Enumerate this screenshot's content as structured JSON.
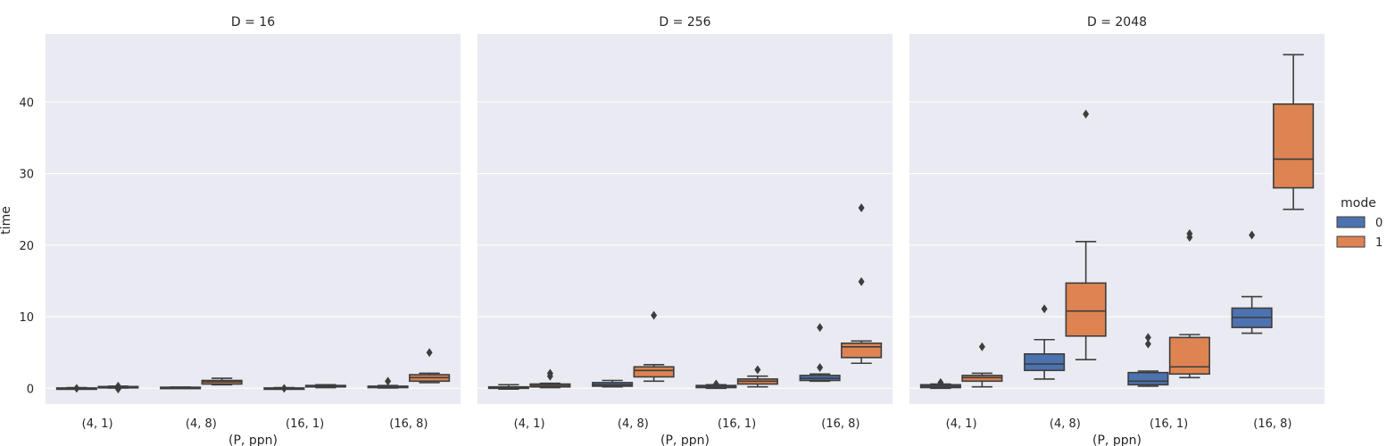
{
  "chart_data": {
    "type": "box",
    "ylabel": "time",
    "xlabel": "(P, ppn)",
    "ylim": [
      -2.2,
      49.5
    ],
    "yticks": [
      0,
      10,
      20,
      30,
      40
    ],
    "categories": [
      "(4, 1)",
      "(4, 8)",
      "(16, 1)",
      "(16, 8)"
    ],
    "legend": {
      "title": "mode",
      "placement": "right",
      "entries": [
        {
          "label": "0",
          "color": "#4c72b0"
        },
        {
          "label": "1",
          "color": "#dd8452"
        }
      ]
    },
    "style": {
      "background": "#eaeaf2",
      "grid": true,
      "grid_color": "#ffffff"
    },
    "panels": [
      {
        "title": "D = 16",
        "boxes": [
          {
            "category": "(4, 1)",
            "mode": "0",
            "whislo": -0.1,
            "q1": -0.05,
            "med": 0.0,
            "q3": 0.05,
            "whishi": 0.1,
            "fliers": [
              0.0
            ]
          },
          {
            "category": "(4, 1)",
            "mode": "1",
            "whislo": 0.05,
            "q1": 0.1,
            "med": 0.15,
            "q3": 0.25,
            "whishi": 0.3,
            "fliers": [
              -0.1,
              0.3
            ]
          },
          {
            "category": "(4, 8)",
            "mode": "0",
            "whislo": 0.05,
            "q1": 0.08,
            "med": 0.1,
            "q3": 0.15,
            "whishi": 0.18,
            "fliers": []
          },
          {
            "category": "(4, 8)",
            "mode": "1",
            "whislo": 0.5,
            "q1": 0.6,
            "med": 0.9,
            "q3": 1.1,
            "whishi": 1.4,
            "fliers": []
          },
          {
            "category": "(16, 1)",
            "mode": "0",
            "whislo": -0.1,
            "q1": -0.05,
            "med": 0.0,
            "q3": 0.05,
            "whishi": 0.1,
            "fliers": [
              0.0
            ]
          },
          {
            "category": "(16, 1)",
            "mode": "1",
            "whislo": 0.1,
            "q1": 0.2,
            "med": 0.3,
            "q3": 0.4,
            "whishi": 0.5,
            "fliers": []
          },
          {
            "category": "(16, 8)",
            "mode": "0",
            "whislo": 0.05,
            "q1": 0.1,
            "med": 0.2,
            "q3": 0.3,
            "whishi": 0.4,
            "fliers": [
              1.0
            ]
          },
          {
            "category": "(16, 8)",
            "mode": "1",
            "whislo": 0.8,
            "q1": 1.0,
            "med": 1.5,
            "q3": 1.9,
            "whishi": 2.1,
            "fliers": [
              5.0
            ]
          }
        ]
      },
      {
        "title": "D = 256",
        "boxes": [
          {
            "category": "(4, 1)",
            "mode": "0",
            "whislo": -0.1,
            "q1": 0.0,
            "med": 0.1,
            "q3": 0.2,
            "whishi": 0.5,
            "fliers": []
          },
          {
            "category": "(4, 1)",
            "mode": "1",
            "whislo": 0.1,
            "q1": 0.2,
            "med": 0.4,
            "q3": 0.6,
            "whishi": 0.7,
            "fliers": [
              1.7,
              2.1
            ]
          },
          {
            "category": "(4, 8)",
            "mode": "0",
            "whislo": 0.2,
            "q1": 0.3,
            "med": 0.5,
            "q3": 0.8,
            "whishi": 1.1,
            "fliers": []
          },
          {
            "category": "(4, 8)",
            "mode": "1",
            "whislo": 1.0,
            "q1": 1.6,
            "med": 2.5,
            "q3": 3.0,
            "whishi": 3.3,
            "fliers": [
              10.2
            ]
          },
          {
            "category": "(16, 1)",
            "mode": "0",
            "whislo": 0.0,
            "q1": 0.1,
            "med": 0.3,
            "q3": 0.4,
            "whishi": 0.5,
            "fliers": [
              0.6
            ]
          },
          {
            "category": "(16, 1)",
            "mode": "1",
            "whislo": 0.2,
            "q1": 0.6,
            "med": 1.0,
            "q3": 1.3,
            "whishi": 1.7,
            "fliers": [
              2.6
            ]
          },
          {
            "category": "(16, 8)",
            "mode": "0",
            "whislo": 1.0,
            "q1": 1.1,
            "med": 1.4,
            "q3": 1.8,
            "whishi": 2.0,
            "fliers": [
              2.9,
              8.5
            ]
          },
          {
            "category": "(16, 8)",
            "mode": "1",
            "whislo": 3.5,
            "q1": 4.3,
            "med": 5.8,
            "q3": 6.3,
            "whishi": 6.6,
            "fliers": [
              14.9,
              25.2
            ]
          }
        ]
      },
      {
        "title": "D = 2048",
        "boxes": [
          {
            "category": "(4, 1)",
            "mode": "0",
            "whislo": 0.0,
            "q1": 0.1,
            "med": 0.3,
            "q3": 0.5,
            "whishi": 0.6,
            "fliers": [
              0.8
            ]
          },
          {
            "category": "(4, 1)",
            "mode": "1",
            "whislo": 0.2,
            "q1": 1.0,
            "med": 1.5,
            "q3": 1.8,
            "whishi": 2.1,
            "fliers": [
              5.8
            ]
          },
          {
            "category": "(4, 8)",
            "mode": "0",
            "whislo": 1.3,
            "q1": 2.5,
            "med": 3.4,
            "q3": 4.8,
            "whishi": 6.8,
            "fliers": [
              11.1
            ]
          },
          {
            "category": "(4, 8)",
            "mode": "1",
            "whislo": 4.0,
            "q1": 7.3,
            "med": 10.8,
            "q3": 14.7,
            "whishi": 20.5,
            "fliers": [
              38.3
            ]
          },
          {
            "category": "(16, 1)",
            "mode": "0",
            "whislo": 0.3,
            "q1": 0.5,
            "med": 1.0,
            "q3": 2.2,
            "whishi": 2.4,
            "fliers": [
              6.2,
              7.1
            ]
          },
          {
            "category": "(16, 1)",
            "mode": "1",
            "whislo": 1.5,
            "q1": 2.0,
            "med": 3.0,
            "q3": 7.1,
            "whishi": 7.5,
            "fliers": [
              21.1,
              21.6
            ]
          },
          {
            "category": "(16, 8)",
            "mode": "0",
            "whislo": 7.7,
            "q1": 8.5,
            "med": 9.9,
            "q3": 11.2,
            "whishi": 12.8,
            "fliers": [
              21.4
            ]
          },
          {
            "category": "(16, 8)",
            "mode": "1",
            "whislo": 25.0,
            "q1": 28.0,
            "med": 32.0,
            "q3": 39.7,
            "whishi": 46.6,
            "fliers": []
          }
        ]
      }
    ]
  }
}
